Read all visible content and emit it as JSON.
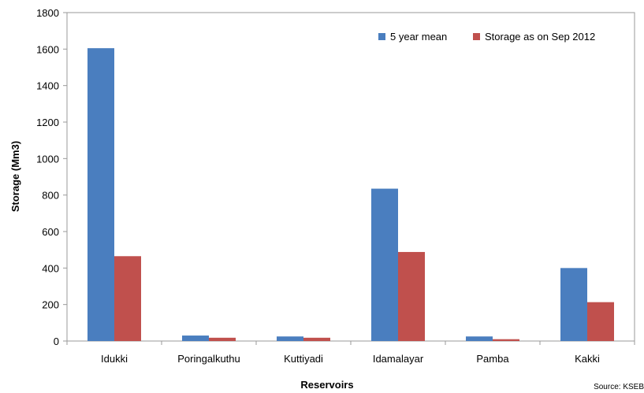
{
  "chart_data": {
    "type": "bar",
    "categories": [
      "Idukki",
      "Poringalkuthu",
      "Kuttiyadi",
      "Idamalayar",
      "Pamba",
      "Kakki"
    ],
    "series": [
      {
        "name": "5 year mean",
        "color": "#4a7ebf",
        "values": [
          1605,
          30,
          25,
          835,
          25,
          400
        ]
      },
      {
        "name": "Storage as on Sep 2012",
        "color": "#c0504d",
        "values": [
          465,
          18,
          18,
          488,
          10,
          213
        ]
      }
    ],
    "xlabel": "Reservoirs",
    "ylabel": "Storage (Mm3)",
    "ylim": [
      0,
      1800
    ],
    "yticks": [
      0,
      200,
      400,
      600,
      800,
      1000,
      1200,
      1400,
      1600,
      1800
    ],
    "grid": false,
    "legend_position": "top-right",
    "source": "Source: KSEB"
  }
}
